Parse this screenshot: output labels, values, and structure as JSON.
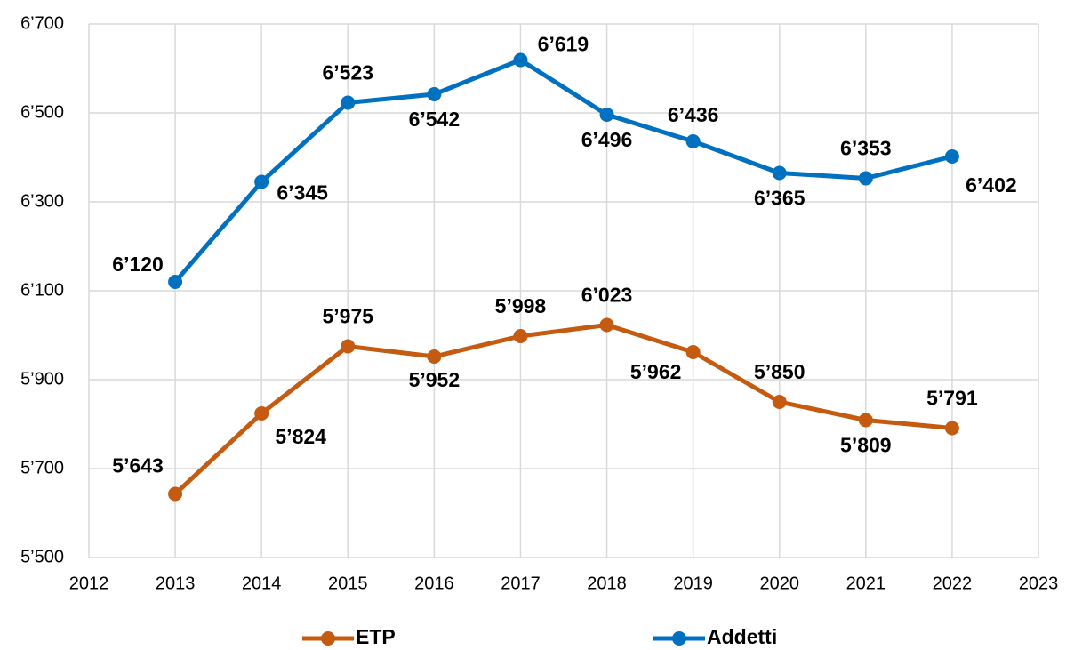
{
  "chart_data": {
    "type": "line",
    "x": [
      2013,
      2014,
      2015,
      2016,
      2017,
      2018,
      2019,
      2020,
      2021,
      2022
    ],
    "series": [
      {
        "name": "ETP",
        "color": "#c55a11",
        "values": [
          5643,
          5824,
          5975,
          5952,
          5998,
          6023,
          5962,
          5850,
          5809,
          5791
        ],
        "value_labels": [
          "5’643",
          "5’824",
          "5’975",
          "5’952",
          "5’998",
          "6’023",
          "5’962",
          "5’850",
          "5’809",
          "5’791"
        ]
      },
      {
        "name": "Addetti",
        "color": "#0070c0",
        "values": [
          6120,
          6345,
          6523,
          6542,
          6619,
          6496,
          6436,
          6365,
          6353,
          6402
        ],
        "value_labels": [
          "6’120",
          "6’345",
          "6’523",
          "6’542",
          "6’619",
          "6’496",
          "6’436",
          "6’365",
          "6’353",
          "6’402"
        ]
      }
    ],
    "xlim": [
      2012,
      2023
    ],
    "xticks": [
      2012,
      2013,
      2014,
      2015,
      2016,
      2017,
      2018,
      2019,
      2020,
      2021,
      2022,
      2023
    ],
    "ylim": [
      5500,
      6700
    ],
    "yticks": [
      {
        "value": 5500,
        "label": "5’500"
      },
      {
        "value": 5700,
        "label": "5’700"
      },
      {
        "value": 5900,
        "label": "5’900"
      },
      {
        "value": 6100,
        "label": "6’100"
      },
      {
        "value": 6300,
        "label": "6’300"
      },
      {
        "value": 6500,
        "label": "6’500"
      },
      {
        "value": 6700,
        "label": "6’700"
      }
    ],
    "grid": true,
    "legend": "bottom"
  }
}
